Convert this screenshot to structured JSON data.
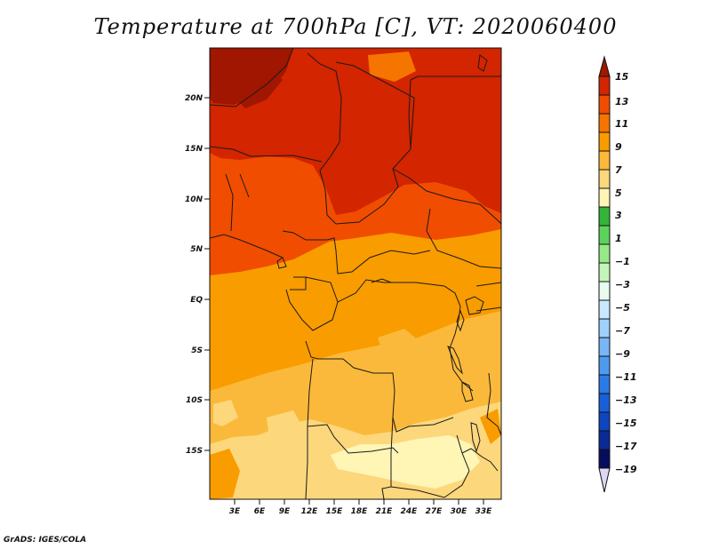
{
  "title": "Temperature at 700hPa [C], VT: 2020060400",
  "credit": "GrADS: IGES/COLA",
  "map": {
    "lat_labels": [
      "20N",
      "15N",
      "10N",
      "5N",
      "EQ",
      "5S",
      "10S",
      "15S"
    ],
    "lon_labels": [
      "3E",
      "6E",
      "9E",
      "12E",
      "15E",
      "18E",
      "21E",
      "24E",
      "27E",
      "30E",
      "33E"
    ]
  },
  "colorbar": {
    "labels": [
      "15",
      "13",
      "11",
      "9",
      "7",
      "5",
      "3",
      "1",
      "−1",
      "−3",
      "−5",
      "−7",
      "−9",
      "−11",
      "−13",
      "−15",
      "−17",
      "−19"
    ],
    "colors": [
      "#a01600",
      "#d22500",
      "#f04d00",
      "#f57500",
      "#f99c00",
      "#fbb93b",
      "#fdd77c",
      "#fff5b5",
      "#35b43a",
      "#5cd35c",
      "#95ea86",
      "#c4f5b8",
      "#e7fcee",
      "#c8e8ff",
      "#a0d0fb",
      "#78b6f5",
      "#4e9aef",
      "#2a7be7",
      "#1a5fd8",
      "#0e45c0",
      "#0a2a95",
      "#060d5d",
      "#ddd6f5"
    ]
  }
}
